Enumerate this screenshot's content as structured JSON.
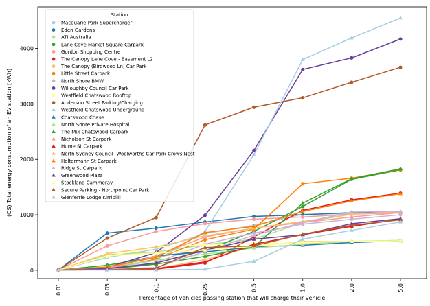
{
  "chart_data": {
    "type": "line",
    "xlabel": "Percentage of vehicles passing station that will charge their vehicle",
    "ylabel": "(OS) Total energy consumption of an EV station [kWh]",
    "categories": [
      "0.01",
      "0.05",
      "0.1",
      "0.25",
      "0.5",
      "1.0",
      "2.0",
      "5.0"
    ],
    "yticks": [
      "0",
      "1000",
      "2000",
      "3000",
      "4000"
    ],
    "ylim": [
      -150,
      4750
    ],
    "grid": false,
    "legend": {
      "title": "Station",
      "placement": "top-left"
    },
    "series": [
      {
        "name": "Macquarie Park Supercharger",
        "color": "#a6cee3",
        "marker": "circle",
        "values": [
          5,
          230,
          380,
          660,
          810,
          1010,
          1020,
          1040
        ]
      },
      {
        "name": "Eden Gardens",
        "color": "#1f78b4",
        "marker": "circle",
        "values": [
          5,
          670,
          760,
          870,
          970,
          1000,
          1040,
          1050
        ]
      },
      {
        "name": "ATI Australia",
        "color": "#b2df8a",
        "marker": "circle",
        "values": [
          5,
          280,
          330,
          460,
          560,
          860,
          1010,
          1040
        ]
      },
      {
        "name": "Lane Cove Market Square Carpark",
        "color": "#33a02c",
        "marker": "circle",
        "values": [
          5,
          90,
          250,
          350,
          700,
          1150,
          1640,
          1810
        ]
      },
      {
        "name": "Gordon Shopping Centre",
        "color": "#fb9a99",
        "marker": "circle",
        "values": [
          5,
          440,
          700,
          840,
          920,
          960,
          1010,
          1040
        ]
      },
      {
        "name": "The Canopy Lane Cove - Basement L2",
        "color": "#e31a1c",
        "marker": "circle",
        "values": [
          5,
          10,
          20,
          130,
          600,
          1080,
          1270,
          1390
        ]
      },
      {
        "name": "The Canopy (Birdwood Ln) Car Park",
        "color": "#fdbf6f",
        "marker": "circle",
        "values": [
          5,
          20,
          30,
          190,
          430,
          520,
          520,
          530
        ]
      },
      {
        "name": "Little Street Carpark",
        "color": "#ff7f00",
        "marker": "circle",
        "values": [
          5,
          30,
          200,
          550,
          740,
          1560,
          1660,
          1820
        ]
      },
      {
        "name": "North Shore BMW",
        "color": "#cab2d6",
        "marker": "circle",
        "values": [
          5,
          20,
          140,
          470,
          670,
          830,
          920,
          1000
        ]
      },
      {
        "name": "Willoughby Council Car Park",
        "color": "#6a3d9a",
        "marker": "circle",
        "values": [
          5,
          50,
          320,
          990,
          2160,
          3620,
          3830,
          4170
        ]
      },
      {
        "name": "Westfield Chatswood Rooftop",
        "color": "#ffff99",
        "marker": "circle",
        "values": [
          5,
          250,
          420,
          460,
          480,
          490,
          510,
          520
        ]
      },
      {
        "name": "Anderson Street Parking/Charging",
        "color": "#b15928",
        "marker": "circle",
        "values": [
          5,
          580,
          950,
          2620,
          2940,
          3110,
          3390,
          3660
        ]
      },
      {
        "name": "Westfield Chatswood Underground",
        "color": "#a6cee3",
        "marker": "triangle",
        "values": [
          5,
          20,
          180,
          700,
          2080,
          3800,
          4190,
          4550
        ]
      },
      {
        "name": "Chatswood Chase",
        "color": "#1f78b4",
        "marker": "triangle",
        "values": [
          5,
          40,
          260,
          330,
          420,
          450,
          500,
          530
        ]
      },
      {
        "name": "North Shore Private Hospital",
        "color": "#b2df8a",
        "marker": "triangle",
        "values": [
          5,
          60,
          180,
          290,
          400,
          470,
          520,
          540
        ]
      },
      {
        "name": "The Mix Chatswood Carpark",
        "color": "#33a02c",
        "marker": "triangle",
        "values": [
          5,
          20,
          110,
          250,
          420,
          1210,
          1650,
          1830
        ]
      },
      {
        "name": "Nicholson St Carpark",
        "color": "#fb9a99",
        "marker": "triangle",
        "values": [
          5,
          30,
          260,
          600,
          760,
          860,
          960,
          1040
        ]
      },
      {
        "name": "Hume St Carpark",
        "color": "#e31a1c",
        "marker": "triangle",
        "values": [
          5,
          10,
          30,
          150,
          470,
          640,
          790,
          920
        ]
      },
      {
        "name": "North Sydney Council- Woolworths Car Park Crows Nest",
        "color": "#fdbf6f",
        "marker": "triangle",
        "values": [
          5,
          300,
          420,
          620,
          760,
          880,
          1010,
          1060
        ]
      },
      {
        "name": "Holtermann St Carpark",
        "color": "#ff7f00",
        "marker": "triangle",
        "values": [
          5,
          60,
          230,
          680,
          790,
          1060,
          1250,
          1380
        ]
      },
      {
        "name": "Ridge St Carpark",
        "color": "#cab2d6",
        "marker": "triangle",
        "values": [
          5,
          20,
          50,
          340,
          630,
          860,
          1050,
          1060
        ]
      },
      {
        "name": "Greenwood Plaza",
        "color": "#6a3d9a",
        "marker": "triangle",
        "values": [
          5,
          30,
          130,
          360,
          560,
          640,
          840,
          930
        ]
      },
      {
        "name": "Stockland Cammeray",
        "color": "#ffff99",
        "marker": "triangle",
        "values": [
          5,
          260,
          310,
          360,
          430,
          510,
          520,
          530
        ]
      },
      {
        "name": "Secure Parking - Northpoint Car Park",
        "color": "#b15928",
        "marker": "triangle",
        "values": [
          5,
          10,
          40,
          410,
          440,
          650,
          810,
          910
        ]
      },
      {
        "name": "Glenferrie Lodge Kirribilli",
        "color": "#a6cee3",
        "marker": "triangle",
        "values": [
          5,
          5,
          5,
          20,
          160,
          560,
          720,
          870
        ]
      }
    ]
  }
}
